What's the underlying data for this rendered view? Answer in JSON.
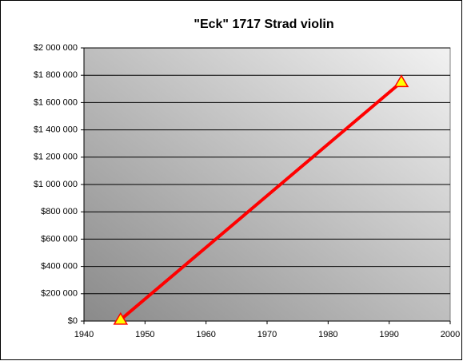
{
  "chart_data": {
    "type": "line",
    "title": "\"Eck\" 1717 Strad violin",
    "x": [
      1946,
      1992
    ],
    "values": [
      10000,
      1750000
    ],
    "color": "#ff0000",
    "marker_color": "#ffff00",
    "marker": "triangle",
    "xlim": [
      1940,
      2000
    ],
    "xticks": [
      1940,
      1950,
      1960,
      1970,
      1980,
      1990,
      2000
    ],
    "ylim": [
      0,
      2000000
    ],
    "yticks": [
      {
        "value": 0,
        "label": "$0"
      },
      {
        "value": 200000,
        "label": "$200 000"
      },
      {
        "value": 400000,
        "label": "$400 000"
      },
      {
        "value": 600000,
        "label": "$600 000"
      },
      {
        "value": 800000,
        "label": "$800 000"
      },
      {
        "value": 1000000,
        "label": "$1 000 000"
      },
      {
        "value": 1200000,
        "label": "$1 200 000"
      },
      {
        "value": 1400000,
        "label": "$1 400 000"
      },
      {
        "value": 1600000,
        "label": "$1 600 000"
      },
      {
        "value": 1800000,
        "label": "$1 800 000"
      },
      {
        "value": 2000000,
        "label": "$2 000 000"
      }
    ],
    "grid": true
  }
}
